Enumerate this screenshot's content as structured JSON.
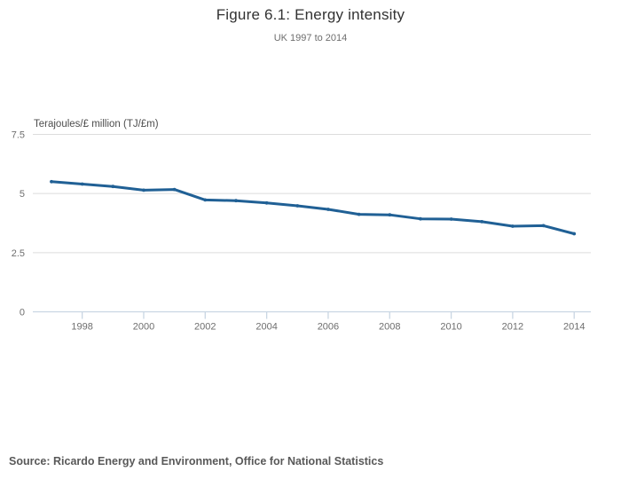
{
  "header": {
    "title": "Figure 6.1: Energy intensity",
    "subtitle": "UK 1997 to 2014"
  },
  "chart_data": {
    "type": "line",
    "title": "Figure 6.1: Energy intensity",
    "subtitle": "UK 1997 to 2014",
    "ylabel": "Terajoules/£ million (TJ/£m)",
    "xlabel": "",
    "x": [
      1997,
      1998,
      1999,
      2000,
      2001,
      2002,
      2003,
      2004,
      2005,
      2006,
      2007,
      2008,
      2009,
      2010,
      2011,
      2012,
      2013,
      2014
    ],
    "series": [
      {
        "name": "Energy intensity",
        "values": [
          5.5,
          5.4,
          5.3,
          5.14,
          5.17,
          4.73,
          4.7,
          4.6,
          4.48,
          4.33,
          4.12,
          4.1,
          3.93,
          3.92,
          3.81,
          3.62,
          3.64,
          3.3
        ]
      }
    ],
    "ylim": [
      0,
      7.5
    ],
    "yticks": [
      0,
      2.5,
      5,
      7.5
    ],
    "ytick_labels": [
      "0",
      "2.5",
      "5",
      "7.5"
    ],
    "xticks": [
      1998,
      2000,
      2002,
      2004,
      2006,
      2008,
      2010,
      2012,
      2014
    ],
    "grid": true,
    "legend": "none",
    "colors": {
      "line": "#206095",
      "gridline": "#dcdcdc",
      "axis": "#c9d6e3",
      "tick_label": "#6e6e6e"
    }
  },
  "footer": {
    "source": "Source: Ricardo Energy and Environment, Office for National Statistics"
  }
}
